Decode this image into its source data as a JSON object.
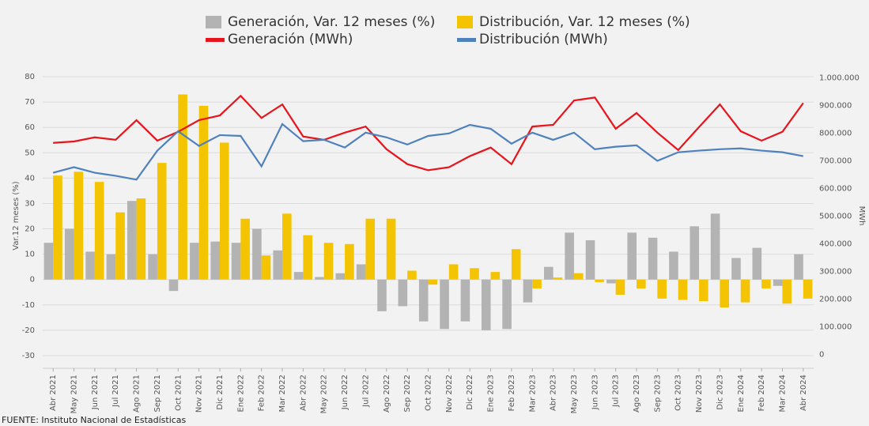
{
  "chart_data": {
    "type": "combo",
    "categories": [
      "Abr 2021",
      "May 2021",
      "Jun 2021",
      "Jul 2021",
      "Ago 2021",
      "Sep 2021",
      "Oct 2021",
      "Nov 2021",
      "Dic 2021",
      "Ene 2022",
      "Feb 2022",
      "Mar 2022",
      "Abr 2022",
      "May 2022",
      "Jun 2022",
      "Jul 2022",
      "Ago 2022",
      "Sep 2022",
      "Oct 2022",
      "Nov 2022",
      "Dic 2022",
      "Ene 2023",
      "Feb 2023",
      "Mar 2023",
      "Abr 2023",
      "May 2023",
      "Jun 2023",
      "Jul 2023",
      "Ago 2023",
      "Sep 2023",
      "Oct 2023",
      "Nov 2023",
      "Dic 2023",
      "Ene 2024",
      "Feb 2024",
      "Mar 2024",
      "Abr 2024"
    ],
    "series": [
      {
        "name": "Generación, Var. 12 meses (%)",
        "type": "bar",
        "color": "#b3b3b3",
        "values": [
          14.5,
          20,
          11,
          10,
          31,
          10,
          -4.5,
          14.5,
          15,
          14.5,
          20,
          11.5,
          3,
          1,
          2.5,
          6,
          -12.5,
          -10.5,
          -16.5,
          -19.5,
          -16.5,
          -20,
          -19.5,
          -9,
          5,
          18.5,
          15.5,
          -1.5,
          18.5,
          16.5,
          11,
          21,
          26,
          8.5,
          12.5,
          -2.5,
          10
        ]
      },
      {
        "name": "Distribución, Var. 12 meses (%)",
        "type": "bar",
        "color": "#f5c400",
        "values": [
          41,
          42.5,
          38.5,
          26.5,
          32,
          46,
          73,
          68.5,
          54,
          24,
          9.5,
          26,
          17.5,
          14.5,
          14,
          24,
          24,
          3.5,
          -2,
          6,
          4.5,
          3,
          12,
          -3.5,
          0.8,
          2.5,
          -1,
          -6,
          -3.5,
          -7.5,
          -8,
          -8.5,
          -11,
          -9,
          -3.5,
          -9.5,
          -7.5
        ]
      },
      {
        "name": "Generación (MWh)",
        "type": "line",
        "axis": "y2",
        "color": "#e8131b",
        "values": [
          765000,
          770000,
          785000,
          776000,
          847000,
          773000,
          805000,
          847000,
          864000,
          935000,
          855000,
          904000,
          788000,
          776000,
          802000,
          824000,
          742000,
          688000,
          666000,
          677000,
          717000,
          748000,
          688000,
          824000,
          830000,
          918000,
          929000,
          816000,
          873000,
          802000,
          739000,
          822000,
          904000,
          807000,
          773000,
          805000,
          909000
        ]
      },
      {
        "name": "Distribución (MWh)",
        "type": "line",
        "axis": "y2",
        "color": "#4f81bd",
        "values": [
          657000,
          677000,
          657000,
          646000,
          632000,
          737000,
          807000,
          754000,
          793000,
          790000,
          680000,
          833000,
          771000,
          776000,
          748000,
          802000,
          785000,
          759000,
          790000,
          799000,
          830000,
          816000,
          762000,
          802000,
          776000,
          802000,
          742000,
          751000,
          756000,
          700000,
          731000,
          737000,
          742000,
          745000,
          737000,
          731000,
          717000
        ]
      }
    ],
    "ylim": [
      -35,
      85
    ],
    "yticks": [
      -30,
      -20,
      -10,
      0,
      10,
      20,
      30,
      40,
      50,
      60,
      70,
      80
    ],
    "y2lim": [
      -50000,
      1050000
    ],
    "y2ticks": [
      0,
      {
        "value": 100000,
        "label": "100.000"
      },
      {
        "value": 200000,
        "label": "200.000"
      },
      {
        "value": 300000,
        "label": "300.000"
      },
      {
        "value": 400000,
        "label": "400.000"
      },
      {
        "value": 500000,
        "label": "500.000"
      },
      {
        "value": 600000,
        "label": "600.000"
      },
      {
        "value": 700000,
        "label": "700.000"
      },
      {
        "value": 800000,
        "label": "800.000"
      },
      {
        "value": 900000,
        "label": "900.000"
      },
      {
        "value": 1000000,
        "label": "1.000.000"
      }
    ],
    "ylabel": "Var.12 meses (%)",
    "y2label": "MWh",
    "grid": true,
    "source": "FUENTE: Instituto Nacional de Estadísticas"
  }
}
